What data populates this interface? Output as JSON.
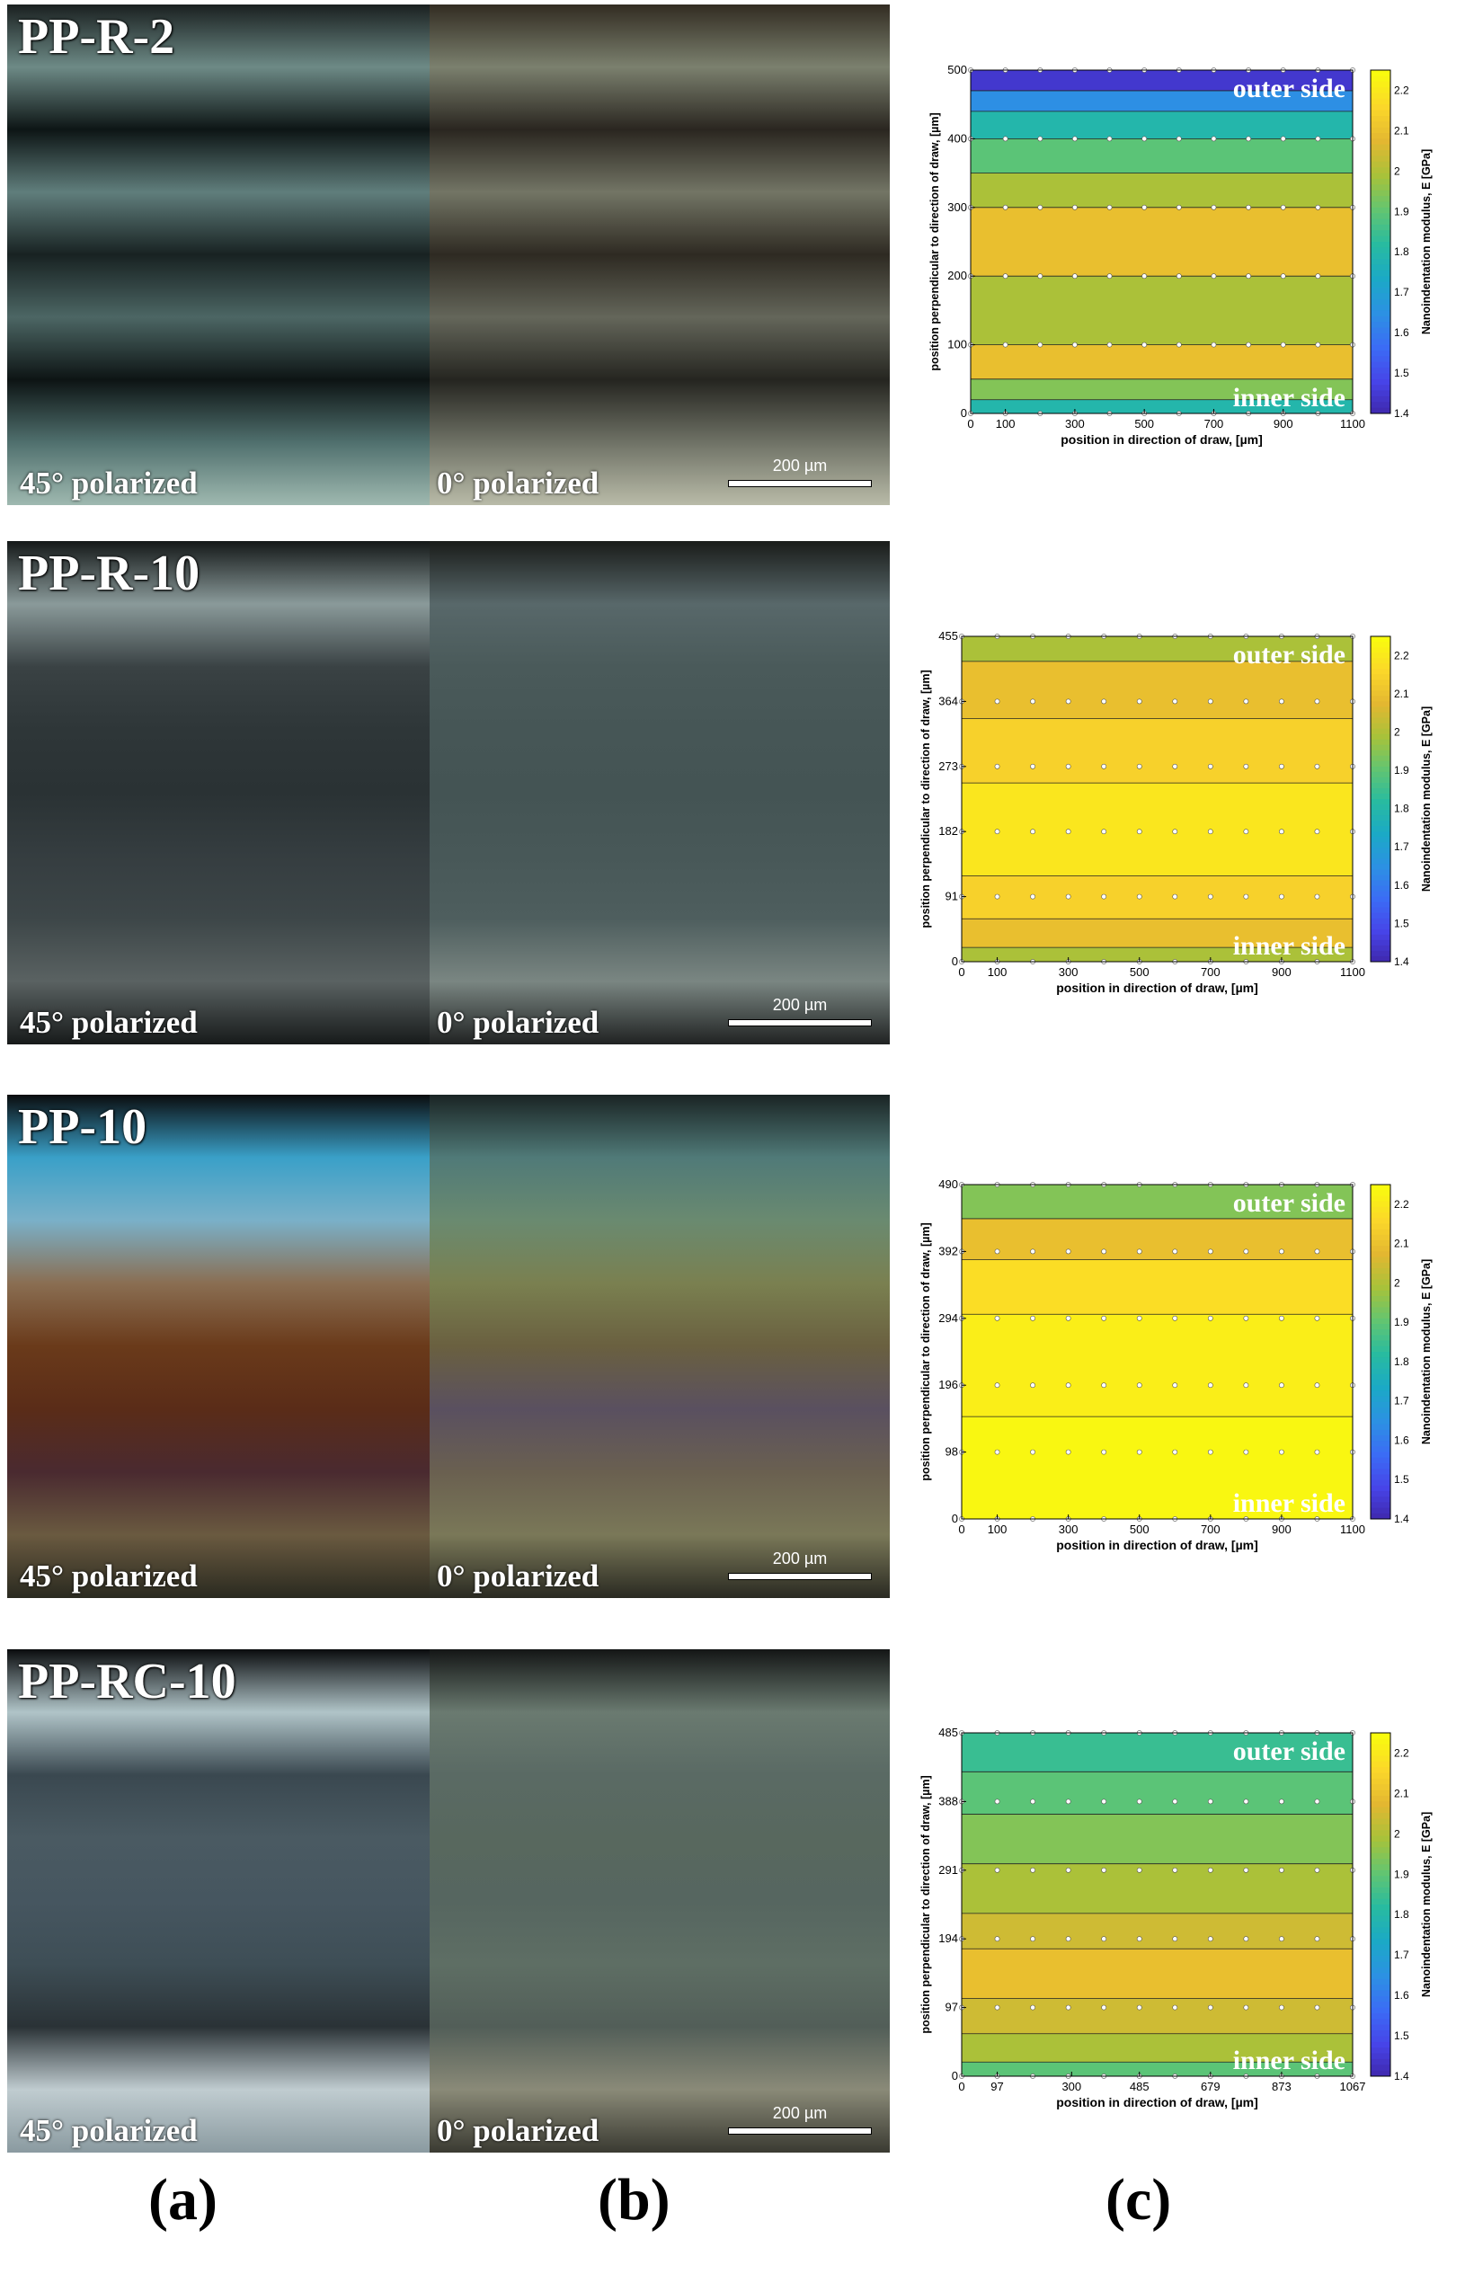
{
  "rows": [
    {
      "sample": "PP-R-2",
      "left_label": "45° polarized",
      "right_label": "0° polarized",
      "scale_text": "200 µm",
      "colors": {
        "a": [
          "#1a2020",
          "#6d8a86",
          "#0d1515",
          "#607e7c",
          "#182222",
          "#4c6664",
          "#0d1414",
          "#50706e",
          "#9fb9b0"
        ],
        "b": [
          "#322c22",
          "#7b806e",
          "#2a2620",
          "#737565",
          "#2e2a22",
          "#64665a",
          "#252520",
          "#6f7266",
          "#b9bba8"
        ]
      },
      "chart_data": {
        "type": "contour",
        "x_ticks": [
          "0",
          "100",
          "300",
          "500",
          "700",
          "900",
          "1100"
        ],
        "y_ticks": [
          "0",
          "100",
          "200",
          "300",
          "400",
          "500"
        ],
        "xlabel": "position in direction of draw, [µm]",
        "ylabel": "position perpendicular to direction of draw, [µm]",
        "colorbar_label": "Nanoindentation modulus, E [GPa]",
        "colorbar_ticks": [
          "1.4",
          "1.5",
          "1.6",
          "1.7",
          "1.8",
          "1.9",
          "2",
          "2.1",
          "2.2"
        ],
        "colorbar_range": [
          1.4,
          2.25
        ],
        "x_range": [
          0,
          1100
        ],
        "y_range": [
          0,
          500
        ],
        "annotation_top": "outer side",
        "annotation_bottom": "inner side",
        "levels": [
          {
            "y": 500,
            "value": 1.45
          },
          {
            "y": 470,
            "value": 1.65
          },
          {
            "y": 440,
            "value": 1.8
          },
          {
            "y": 400,
            "value": 1.9
          },
          {
            "y": 350,
            "value": 2.0
          },
          {
            "y": 300,
            "value": 2.1
          },
          {
            "y": 200,
            "value": 2.0
          },
          {
            "y": 100,
            "value": 2.1
          },
          {
            "y": 50,
            "value": 1.95
          },
          {
            "y": 20,
            "value": 1.8
          },
          {
            "y": 0,
            "value": 1.65
          }
        ]
      }
    },
    {
      "sample": "PP-R-10",
      "left_label": "45° polarized",
      "right_label": "0° polarized",
      "scale_text": "200 µm",
      "colors": {
        "a": [
          "#141818",
          "#8a9a9a",
          "#3a4244",
          "#2e3638",
          "#2a3234",
          "#353d40",
          "#3d4648",
          "#5a6262",
          "#171a1a"
        ],
        "b": [
          "#1a1c1a",
          "#58686a",
          "#4a5a5a",
          "#465656",
          "#445454",
          "#485858",
          "#4e5e5e",
          "#7a8682",
          "#202222"
        ]
      },
      "chart_data": {
        "type": "contour",
        "x_ticks": [
          "0",
          "100",
          "300",
          "500",
          "700",
          "900",
          "1100"
        ],
        "y_ticks": [
          "0",
          "91",
          "182",
          "273",
          "364",
          "455"
        ],
        "xlabel": "position in direction of draw, [µm]",
        "ylabel": "position perpendicular to direction of draw, [µm]",
        "colorbar_label": "Nanoindentation modulus, E [GPa]",
        "colorbar_ticks": [
          "1.4",
          "1.5",
          "1.6",
          "1.7",
          "1.8",
          "1.9",
          "2",
          "2.1",
          "2.2"
        ],
        "colorbar_range": [
          1.4,
          2.25
        ],
        "x_range": [
          0,
          1100
        ],
        "y_range": [
          0,
          455
        ],
        "annotation_top": "outer side",
        "annotation_bottom": "inner side",
        "levels": [
          {
            "y": 455,
            "value": 2.0
          },
          {
            "y": 420,
            "value": 2.1
          },
          {
            "y": 340,
            "value": 2.15
          },
          {
            "y": 250,
            "value": 2.2
          },
          {
            "y": 120,
            "value": 2.15
          },
          {
            "y": 60,
            "value": 2.1
          },
          {
            "y": 20,
            "value": 2.0
          },
          {
            "y": 0,
            "value": 1.95
          }
        ]
      }
    },
    {
      "sample": "PP-10",
      "left_label": "45° polarized",
      "right_label": "0° polarized",
      "scale_text": "200 µm",
      "colors": {
        "a": [
          "#0a0c0e",
          "#3aa0c8",
          "#7ab0c8",
          "#8a6e52",
          "#6a3a1a",
          "#5a2c18",
          "#4a2a30",
          "#6a5a40",
          "#2a2a20"
        ],
        "b": [
          "#1a2424",
          "#507a78",
          "#6a8a70",
          "#7a8050",
          "#6a6040",
          "#5a5060",
          "#6a6050",
          "#7a7858",
          "#2a2a22"
        ]
      },
      "chart_data": {
        "type": "contour",
        "x_ticks": [
          "0",
          "100",
          "300",
          "500",
          "700",
          "900",
          "1100"
        ],
        "y_ticks": [
          "0",
          "98",
          "196",
          "294",
          "392",
          "490"
        ],
        "xlabel": "position in direction of draw, [µm]",
        "ylabel": "position perpendicular to direction of draw, [µm]",
        "colorbar_label": "Nanoindentation modulus, E [GPa]",
        "colorbar_ticks": [
          "1.4",
          "1.5",
          "1.6",
          "1.7",
          "1.8",
          "1.9",
          "2",
          "2.1",
          "2.2"
        ],
        "colorbar_range": [
          1.4,
          2.25
        ],
        "x_range": [
          0,
          1100
        ],
        "y_range": [
          0,
          490
        ],
        "annotation_top": "outer side",
        "annotation_bottom": "inner side",
        "levels": [
          {
            "y": 490,
            "value": 1.95
          },
          {
            "y": 440,
            "value": 2.1
          },
          {
            "y": 380,
            "value": 2.18
          },
          {
            "y": 300,
            "value": 2.22
          },
          {
            "y": 150,
            "value": 2.24
          },
          {
            "y": 0,
            "value": 2.24
          }
        ]
      }
    },
    {
      "sample": "PP-RC-10",
      "left_label": "45° polarized",
      "right_label": "0° polarized",
      "scale_text": "200 µm",
      "colors": {
        "a": [
          "#0a0c0e",
          "#b0c4c8",
          "#3a4850",
          "#4a5a62",
          "#465660",
          "#3e4e56",
          "#2a3236",
          "#c0ccd0",
          "#8a9aa0"
        ],
        "b": [
          "#141616",
          "#6a7a70",
          "#5a6a64",
          "#58685e",
          "#566660",
          "#5e6e64",
          "#525e58",
          "#8a8a78",
          "#3a3a32"
        ]
      },
      "chart_data": {
        "type": "contour",
        "x_ticks": [
          "0",
          "97",
          "300",
          "485",
          "679",
          "873",
          "1067"
        ],
        "y_ticks": [
          "0",
          "97",
          "194",
          "291",
          "388",
          "485"
        ],
        "xlabel": "position in direction of draw, [µm]",
        "ylabel": "position perpendicular to direction of draw, [µm]",
        "colorbar_label": "Nanoindentation modulus, E [GPa]",
        "colorbar_ticks": [
          "1.4",
          "1.5",
          "1.6",
          "1.7",
          "1.8",
          "1.9",
          "2",
          "2.1",
          "2.2"
        ],
        "colorbar_range": [
          1.4,
          2.25
        ],
        "x_range": [
          0,
          1067
        ],
        "y_range": [
          0,
          485
        ],
        "annotation_top": "outer side",
        "annotation_bottom": "inner side",
        "levels": [
          {
            "y": 485,
            "value": 1.85
          },
          {
            "y": 430,
            "value": 1.9
          },
          {
            "y": 370,
            "value": 1.95
          },
          {
            "y": 300,
            "value": 2.0
          },
          {
            "y": 230,
            "value": 2.05
          },
          {
            "y": 180,
            "value": 2.1
          },
          {
            "y": 110,
            "value": 2.05
          },
          {
            "y": 60,
            "value": 2.0
          },
          {
            "y": 20,
            "value": 1.9
          },
          {
            "y": 0,
            "value": 1.85
          }
        ]
      }
    }
  ],
  "subfigure_labels": [
    "(a)",
    "(b)",
    "(c)"
  ]
}
